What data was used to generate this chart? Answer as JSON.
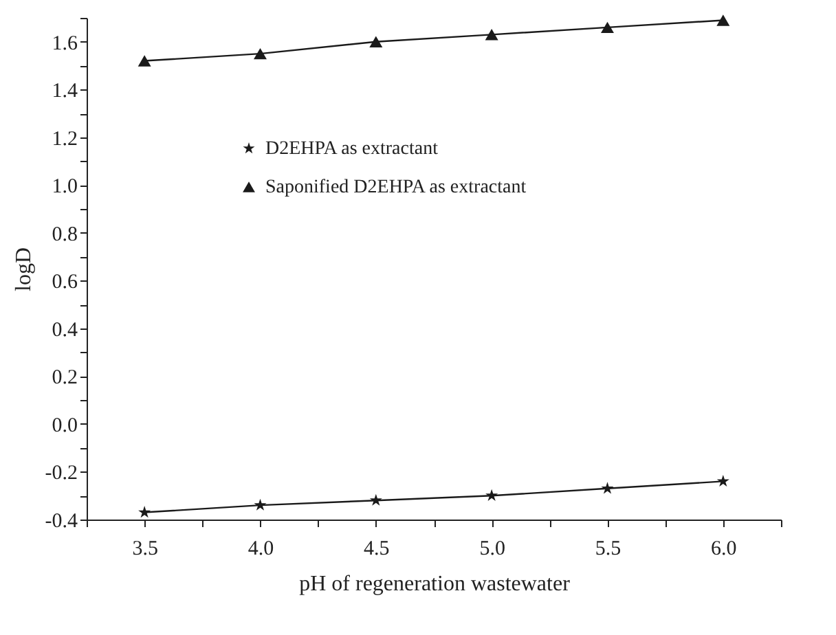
{
  "chart_data": {
    "type": "line",
    "xlabel": "pH of regeneration wastewater",
    "ylabel": "logD",
    "x": [
      3.5,
      4.0,
      4.5,
      5.0,
      5.5,
      6.0
    ],
    "series": [
      {
        "name": "D2EHPA as extractant",
        "color": "#1a1a1a",
        "marker": "star",
        "values": [
          -0.37,
          -0.34,
          -0.32,
          -0.3,
          -0.27,
          -0.24
        ]
      },
      {
        "name": "Saponified D2EHPA as extractant",
        "color": "#1a1a1a",
        "marker": "triangle",
        "values": [
          1.52,
          1.55,
          1.6,
          1.63,
          1.66,
          1.69
        ]
      }
    ],
    "xlim": [
      3.25,
      6.25
    ],
    "xticks": [
      {
        "value": 3.25,
        "label": null
      },
      3.5,
      {
        "value": 3.75,
        "label": null
      },
      {
        "value": 4,
        "label": "4.0"
      },
      {
        "value": 4.25,
        "label": null
      },
      4.5,
      {
        "value": 4.75,
        "label": null
      },
      {
        "value": 5,
        "label": "5.0"
      },
      {
        "value": 5.25,
        "label": null
      },
      5.5,
      {
        "value": 5.75,
        "label": null
      },
      {
        "value": 6,
        "label": "6.0"
      },
      {
        "value": 6.25,
        "label": null
      }
    ],
    "ylim": [
      -0.4,
      1.7
    ],
    "yticks": [
      -0.4,
      {
        "value": -0.3,
        "label": null
      },
      -0.2,
      {
        "value": -0.1,
        "label": null
      },
      {
        "value": 0,
        "label": "0.0"
      },
      {
        "value": 0.1,
        "label": null
      },
      0.2,
      {
        "value": 0.3,
        "label": null
      },
      0.4,
      {
        "value": 0.5,
        "label": null
      },
      0.6,
      {
        "value": 0.7,
        "label": null
      },
      0.8,
      {
        "value": 0.9,
        "label": null
      },
      {
        "value": 1,
        "label": "1.0"
      },
      {
        "value": 1.1,
        "label": null
      },
      1.2,
      {
        "value": 1.3,
        "label": null
      },
      1.4,
      {
        "value": 1.5,
        "label": null
      },
      1.6,
      {
        "value": 1.7,
        "label": null
      }
    ],
    "grid": false,
    "legend": "top left",
    "line_style": "solid"
  }
}
